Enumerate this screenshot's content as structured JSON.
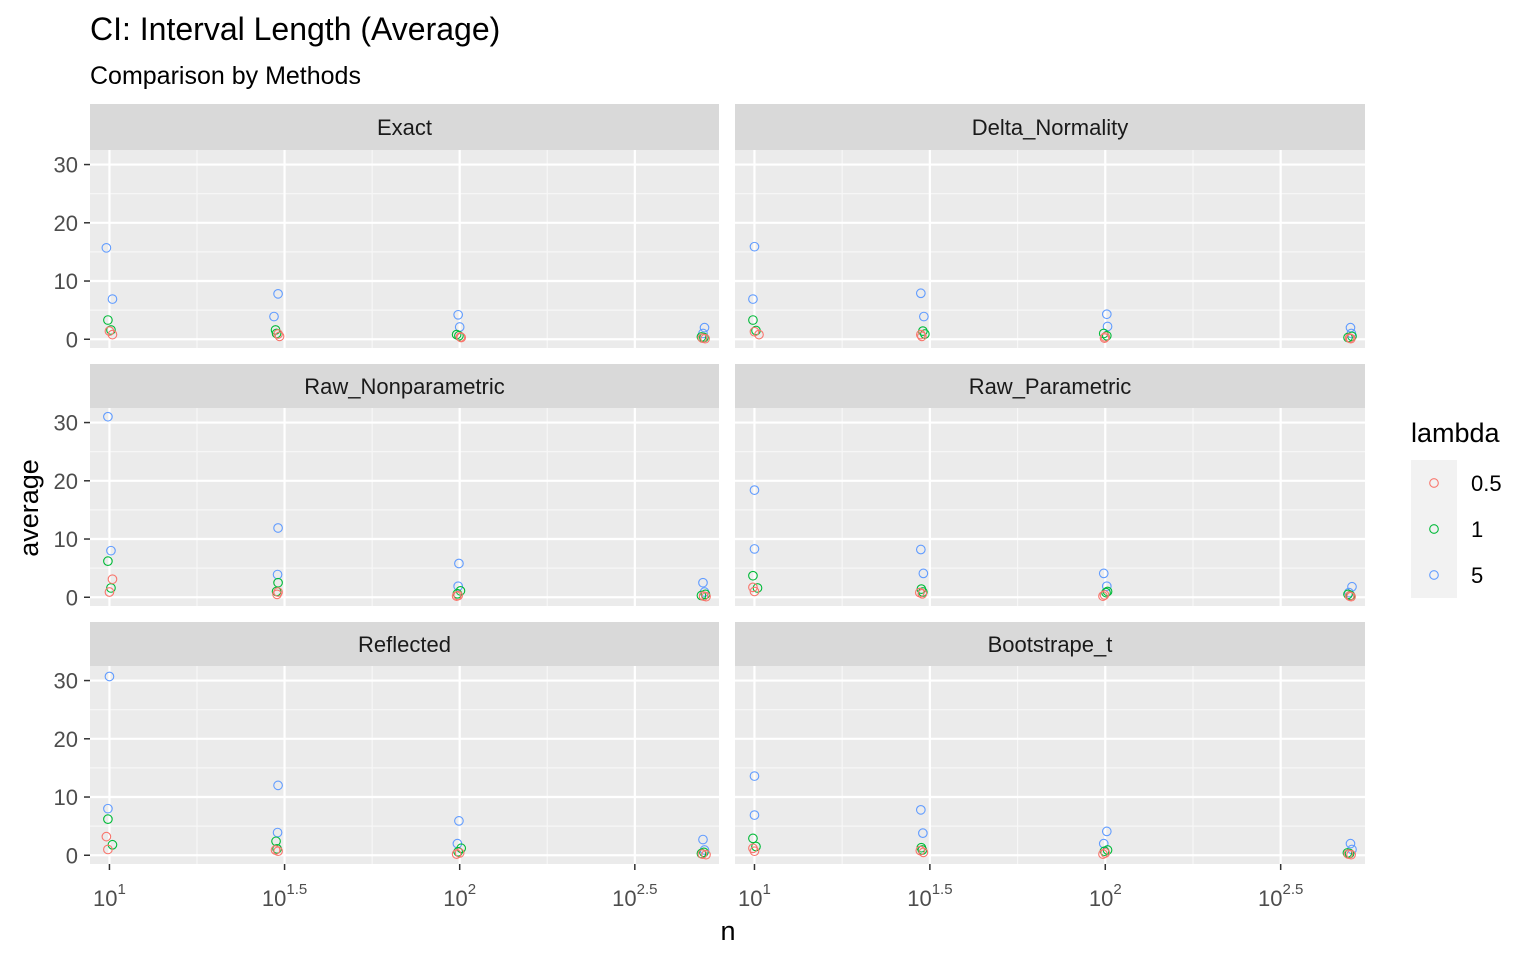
{
  "chart_data": {
    "type": "scatter",
    "title": "CI: Interval Length (Average)",
    "subtitle": "Comparison by Methods",
    "xlabel": "n",
    "ylabel": "average",
    "x_scale": "log10",
    "xlim": [
      8.8,
      550
    ],
    "ylim": [
      -1.5,
      32.5
    ],
    "x_ticks": [
      {
        "base": "10",
        "exp": "1",
        "value": 10
      },
      {
        "base": "10",
        "exp": "1.5",
        "value": 31.6228
      },
      {
        "base": "10",
        "exp": "2",
        "value": 100
      },
      {
        "base": "10",
        "exp": "2.5",
        "value": 316.228
      }
    ],
    "y_ticks": [
      {
        "label": "0",
        "value": 0
      },
      {
        "label": "10",
        "value": 10
      },
      {
        "label": "20",
        "value": 20
      },
      {
        "label": "30",
        "value": 30
      }
    ],
    "legend": {
      "title": "lambda",
      "placement": "right",
      "items": [
        {
          "label": "0.5",
          "color": "#F8766D"
        },
        {
          "label": "1",
          "color": "#00BA38"
        },
        {
          "label": "5",
          "color": "#619CFF"
        }
      ]
    },
    "colors": {
      "0.5": "#F8766D",
      "1": "#00BA38",
      "5": "#619CFF"
    },
    "grid": true,
    "facets": [
      {
        "name": "Exact",
        "points": [
          {
            "x": 9.8,
            "y": 15.7,
            "lambda": "5"
          },
          {
            "x": 10.2,
            "y": 6.9,
            "lambda": "5"
          },
          {
            "x": 9.9,
            "y": 3.3,
            "lambda": "1"
          },
          {
            "x": 10.1,
            "y": 1.6,
            "lambda": "1"
          },
          {
            "x": 10.0,
            "y": 1.4,
            "lambda": "0.5"
          },
          {
            "x": 10.2,
            "y": 0.8,
            "lambda": "0.5"
          },
          {
            "x": 29.5,
            "y": 3.9,
            "lambda": "5"
          },
          {
            "x": 30.3,
            "y": 7.8,
            "lambda": "5"
          },
          {
            "x": 29.8,
            "y": 1.6,
            "lambda": "1"
          },
          {
            "x": 30.0,
            "y": 1.0,
            "lambda": "1"
          },
          {
            "x": 30.3,
            "y": 0.9,
            "lambda": "0.5"
          },
          {
            "x": 30.6,
            "y": 0.5,
            "lambda": "0.5"
          },
          {
            "x": 99.0,
            "y": 4.2,
            "lambda": "5"
          },
          {
            "x": 100.0,
            "y": 2.1,
            "lambda": "5"
          },
          {
            "x": 98.0,
            "y": 0.8,
            "lambda": "1"
          },
          {
            "x": 99.5,
            "y": 0.6,
            "lambda": "1"
          },
          {
            "x": 100.5,
            "y": 0.4,
            "lambda": "0.5"
          },
          {
            "x": 101.0,
            "y": 0.3,
            "lambda": "0.5"
          },
          {
            "x": 500.0,
            "y": 2.0,
            "lambda": "5"
          },
          {
            "x": 495.0,
            "y": 1.0,
            "lambda": "5"
          },
          {
            "x": 490.0,
            "y": 0.4,
            "lambda": "1"
          },
          {
            "x": 498.0,
            "y": 0.3,
            "lambda": "1"
          },
          {
            "x": 493.0,
            "y": 0.2,
            "lambda": "0.5"
          },
          {
            "x": 502.0,
            "y": 0.1,
            "lambda": "0.5"
          }
        ]
      },
      {
        "name": "Delta_Normality",
        "points": [
          {
            "x": 10.0,
            "y": 15.9,
            "lambda": "5"
          },
          {
            "x": 9.9,
            "y": 6.9,
            "lambda": "5"
          },
          {
            "x": 9.9,
            "y": 3.3,
            "lambda": "1"
          },
          {
            "x": 10.1,
            "y": 1.5,
            "lambda": "1"
          },
          {
            "x": 10.0,
            "y": 1.3,
            "lambda": "0.5"
          },
          {
            "x": 10.3,
            "y": 0.8,
            "lambda": "0.5"
          },
          {
            "x": 29.8,
            "y": 7.9,
            "lambda": "5"
          },
          {
            "x": 30.4,
            "y": 3.9,
            "lambda": "5"
          },
          {
            "x": 30.2,
            "y": 1.4,
            "lambda": "1"
          },
          {
            "x": 30.6,
            "y": 0.9,
            "lambda": "1"
          },
          {
            "x": 29.8,
            "y": 0.8,
            "lambda": "0.5"
          },
          {
            "x": 30.0,
            "y": 0.5,
            "lambda": "0.5"
          },
          {
            "x": 101.0,
            "y": 4.3,
            "lambda": "5"
          },
          {
            "x": 101.5,
            "y": 2.2,
            "lambda": "5"
          },
          {
            "x": 99.0,
            "y": 1.0,
            "lambda": "1"
          },
          {
            "x": 101.0,
            "y": 0.6,
            "lambda": "1"
          },
          {
            "x": 100.0,
            "y": 0.4,
            "lambda": "0.5"
          },
          {
            "x": 99.5,
            "y": 0.2,
            "lambda": "0.5"
          },
          {
            "x": 500.0,
            "y": 2.0,
            "lambda": "5"
          },
          {
            "x": 503.0,
            "y": 1.0,
            "lambda": "5"
          },
          {
            "x": 492.0,
            "y": 0.3,
            "lambda": "1"
          },
          {
            "x": 505.0,
            "y": 0.5,
            "lambda": "1"
          },
          {
            "x": 497.0,
            "y": 0.2,
            "lambda": "0.5"
          },
          {
            "x": 501.0,
            "y": 0.1,
            "lambda": "0.5"
          }
        ]
      },
      {
        "name": "Raw_Nonparametric",
        "points": [
          {
            "x": 9.9,
            "y": 31.0,
            "lambda": "5"
          },
          {
            "x": 10.1,
            "y": 8.0,
            "lambda": "5"
          },
          {
            "x": 9.9,
            "y": 6.2,
            "lambda": "1"
          },
          {
            "x": 10.1,
            "y": 1.6,
            "lambda": "1"
          },
          {
            "x": 10.2,
            "y": 3.1,
            "lambda": "0.5"
          },
          {
            "x": 10.0,
            "y": 0.9,
            "lambda": "0.5"
          },
          {
            "x": 30.3,
            "y": 11.9,
            "lambda": "5"
          },
          {
            "x": 30.2,
            "y": 3.9,
            "lambda": "5"
          },
          {
            "x": 30.3,
            "y": 2.5,
            "lambda": "1"
          },
          {
            "x": 30.0,
            "y": 1.0,
            "lambda": "1"
          },
          {
            "x": 30.3,
            "y": 0.9,
            "lambda": "0.5"
          },
          {
            "x": 30.1,
            "y": 0.5,
            "lambda": "0.5"
          },
          {
            "x": 99.5,
            "y": 5.8,
            "lambda": "5"
          },
          {
            "x": 99.0,
            "y": 1.9,
            "lambda": "5"
          },
          {
            "x": 98.5,
            "y": 0.6,
            "lambda": "1"
          },
          {
            "x": 100.5,
            "y": 1.1,
            "lambda": "1"
          },
          {
            "x": 99.0,
            "y": 0.3,
            "lambda": "0.5"
          },
          {
            "x": 98.0,
            "y": 0.2,
            "lambda": "0.5"
          },
          {
            "x": 495.0,
            "y": 2.5,
            "lambda": "5"
          },
          {
            "x": 500.0,
            "y": 0.9,
            "lambda": "5"
          },
          {
            "x": 490.0,
            "y": 0.3,
            "lambda": "1"
          },
          {
            "x": 503.0,
            "y": 0.5,
            "lambda": "1"
          },
          {
            "x": 497.0,
            "y": 0.2,
            "lambda": "0.5"
          },
          {
            "x": 505.0,
            "y": 0.1,
            "lambda": "0.5"
          }
        ]
      },
      {
        "name": "Raw_Parametric",
        "points": [
          {
            "x": 10.0,
            "y": 18.4,
            "lambda": "5"
          },
          {
            "x": 10.0,
            "y": 8.3,
            "lambda": "5"
          },
          {
            "x": 9.9,
            "y": 3.7,
            "lambda": "1"
          },
          {
            "x": 10.2,
            "y": 1.6,
            "lambda": "1"
          },
          {
            "x": 9.9,
            "y": 1.7,
            "lambda": "0.5"
          },
          {
            "x": 10.0,
            "y": 1.0,
            "lambda": "0.5"
          },
          {
            "x": 29.8,
            "y": 8.2,
            "lambda": "5"
          },
          {
            "x": 30.3,
            "y": 4.1,
            "lambda": "5"
          },
          {
            "x": 29.9,
            "y": 1.4,
            "lambda": "1"
          },
          {
            "x": 30.2,
            "y": 0.9,
            "lambda": "1"
          },
          {
            "x": 29.6,
            "y": 0.8,
            "lambda": "0.5"
          },
          {
            "x": 30.1,
            "y": 0.6,
            "lambda": "0.5"
          },
          {
            "x": 99.0,
            "y": 4.1,
            "lambda": "5"
          },
          {
            "x": 101.0,
            "y": 1.9,
            "lambda": "5"
          },
          {
            "x": 100.5,
            "y": 0.8,
            "lambda": "1"
          },
          {
            "x": 101.5,
            "y": 1.0,
            "lambda": "1"
          },
          {
            "x": 99.5,
            "y": 0.4,
            "lambda": "0.5"
          },
          {
            "x": 98.5,
            "y": 0.2,
            "lambda": "0.5"
          },
          {
            "x": 505.0,
            "y": 1.8,
            "lambda": "5"
          },
          {
            "x": 495.0,
            "y": 0.8,
            "lambda": "5"
          },
          {
            "x": 492.0,
            "y": 0.5,
            "lambda": "1"
          },
          {
            "x": 500.0,
            "y": 0.3,
            "lambda": "1"
          },
          {
            "x": 497.0,
            "y": 0.2,
            "lambda": "0.5"
          },
          {
            "x": 502.0,
            "y": 0.1,
            "lambda": "0.5"
          }
        ]
      },
      {
        "name": "Reflected",
        "points": [
          {
            "x": 10.0,
            "y": 30.7,
            "lambda": "5"
          },
          {
            "x": 9.9,
            "y": 8.0,
            "lambda": "5"
          },
          {
            "x": 9.9,
            "y": 6.2,
            "lambda": "1"
          },
          {
            "x": 10.2,
            "y": 1.8,
            "lambda": "1"
          },
          {
            "x": 9.8,
            "y": 3.2,
            "lambda": "0.5"
          },
          {
            "x": 9.9,
            "y": 1.0,
            "lambda": "0.5"
          },
          {
            "x": 30.3,
            "y": 12.0,
            "lambda": "5"
          },
          {
            "x": 30.2,
            "y": 3.9,
            "lambda": "5"
          },
          {
            "x": 29.9,
            "y": 2.4,
            "lambda": "1"
          },
          {
            "x": 30.1,
            "y": 1.1,
            "lambda": "1"
          },
          {
            "x": 29.8,
            "y": 0.9,
            "lambda": "0.5"
          },
          {
            "x": 30.3,
            "y": 0.7,
            "lambda": "0.5"
          },
          {
            "x": 99.5,
            "y": 5.9,
            "lambda": "5"
          },
          {
            "x": 98.5,
            "y": 2.0,
            "lambda": "5"
          },
          {
            "x": 99.0,
            "y": 0.6,
            "lambda": "1"
          },
          {
            "x": 101.0,
            "y": 1.2,
            "lambda": "1"
          },
          {
            "x": 100.0,
            "y": 0.4,
            "lambda": "0.5"
          },
          {
            "x": 98.0,
            "y": 0.2,
            "lambda": "0.5"
          },
          {
            "x": 495.0,
            "y": 2.7,
            "lambda": "5"
          },
          {
            "x": 500.0,
            "y": 0.9,
            "lambda": "5"
          },
          {
            "x": 490.0,
            "y": 0.3,
            "lambda": "1"
          },
          {
            "x": 498.0,
            "y": 0.5,
            "lambda": "1"
          },
          {
            "x": 493.0,
            "y": 0.2,
            "lambda": "0.5"
          },
          {
            "x": 505.0,
            "y": 0.1,
            "lambda": "0.5"
          }
        ]
      },
      {
        "name": "Bootstrape_t",
        "points": [
          {
            "x": 10.0,
            "y": 13.6,
            "lambda": "5"
          },
          {
            "x": 10.0,
            "y": 6.9,
            "lambda": "5"
          },
          {
            "x": 9.9,
            "y": 2.9,
            "lambda": "1"
          },
          {
            "x": 10.1,
            "y": 1.5,
            "lambda": "1"
          },
          {
            "x": 9.9,
            "y": 1.2,
            "lambda": "0.5"
          },
          {
            "x": 10.0,
            "y": 0.7,
            "lambda": "0.5"
          },
          {
            "x": 29.8,
            "y": 7.8,
            "lambda": "5"
          },
          {
            "x": 30.2,
            "y": 3.8,
            "lambda": "5"
          },
          {
            "x": 29.9,
            "y": 1.3,
            "lambda": "1"
          },
          {
            "x": 30.1,
            "y": 0.9,
            "lambda": "1"
          },
          {
            "x": 29.7,
            "y": 0.8,
            "lambda": "0.5"
          },
          {
            "x": 30.3,
            "y": 0.5,
            "lambda": "0.5"
          },
          {
            "x": 101.0,
            "y": 4.1,
            "lambda": "5"
          },
          {
            "x": 99.0,
            "y": 2.0,
            "lambda": "5"
          },
          {
            "x": 99.5,
            "y": 0.7,
            "lambda": "1"
          },
          {
            "x": 101.5,
            "y": 0.9,
            "lambda": "1"
          },
          {
            "x": 100.0,
            "y": 0.4,
            "lambda": "0.5"
          },
          {
            "x": 98.5,
            "y": 0.2,
            "lambda": "0.5"
          },
          {
            "x": 500.0,
            "y": 2.0,
            "lambda": "5"
          },
          {
            "x": 505.0,
            "y": 1.0,
            "lambda": "5"
          },
          {
            "x": 490.0,
            "y": 0.4,
            "lambda": "1"
          },
          {
            "x": 497.0,
            "y": 0.3,
            "lambda": "1"
          },
          {
            "x": 493.0,
            "y": 0.2,
            "lambda": "0.5"
          },
          {
            "x": 502.0,
            "y": 0.1,
            "lambda": "0.5"
          }
        ]
      }
    ]
  }
}
